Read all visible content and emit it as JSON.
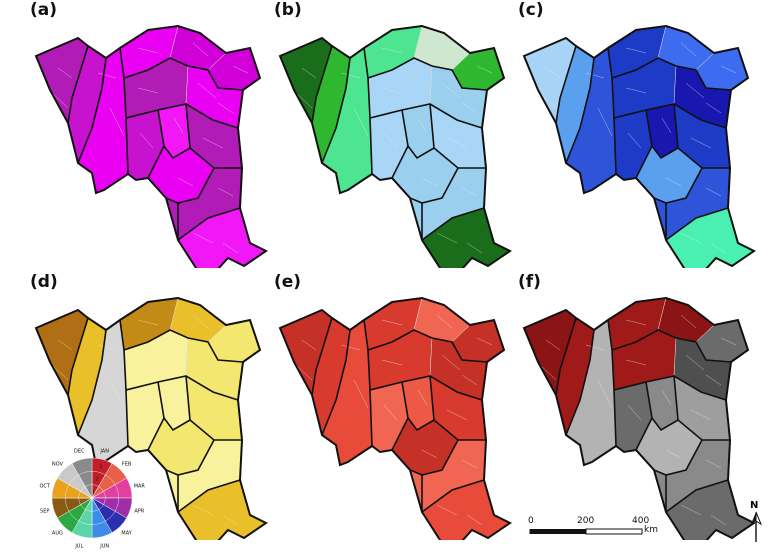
{
  "panels": [
    {
      "label": "(a)",
      "scheme": "magenta"
    },
    {
      "label": "(b)",
      "scheme": "green"
    },
    {
      "label": "(c)",
      "scheme": "blue"
    },
    {
      "label": "(d)",
      "scheme": "yellow"
    },
    {
      "label": "(e)",
      "scheme": "red"
    },
    {
      "label": "(f)",
      "scheme": "grey"
    }
  ],
  "legend": {
    "months": [
      "JAN",
      "FEB",
      "MAR",
      "APR",
      "MAY",
      "JUN",
      "JUL",
      "AUG",
      "SEP",
      "OCT",
      "NOV",
      "DEC"
    ],
    "colors": [
      "#c21f2a",
      "#e8604a",
      "#e23fa0",
      "#a02fa7",
      "#2c2fae",
      "#3e8be8",
      "#5cd4a9",
      "#2da842",
      "#8a5a12",
      "#e8a21e",
      "#c9c9c9",
      "#8a8a8a"
    ],
    "ring_numbers": [
      "1",
      "2",
      "3"
    ]
  },
  "scale": {
    "ticks": [
      "0",
      "200",
      "400"
    ],
    "unit": "km"
  },
  "north": {
    "letter": "N"
  },
  "colors": {
    "border": "#111111",
    "magenta": [
      "#d100d9",
      "#ea00f2",
      "#c712cf",
      "#b01cb5",
      "#f217f7"
    ],
    "green": [
      "#2fb82f",
      "#cfe6cf",
      "#a9d6f6",
      "#9ad0ee",
      "#4de58f",
      "#1a6d1a",
      "#6be68f"
    ],
    "blue": [
      "#2e55d9",
      "#1d3bc7",
      "#3d6cf0",
      "#a6d3f6",
      "#1818b0",
      "#5aa0ee",
      "#4af0b2"
    ],
    "yellow": [
      "#e9c02a",
      "#f3e76f",
      "#f8f29d",
      "#c48a16",
      "#d6d6d6",
      "#2a6c1f",
      "#b06f14"
    ],
    "red": [
      "#e84b3a",
      "#d83b2e",
      "#f06652",
      "#c53027",
      "#ee5946"
    ],
    "grey": [
      "#6b6b6b",
      "#8a8a8a",
      "#9e9e9e",
      "#4f4f4f",
      "#8b1414",
      "#a11a1a",
      "#b3b3b3"
    ]
  }
}
